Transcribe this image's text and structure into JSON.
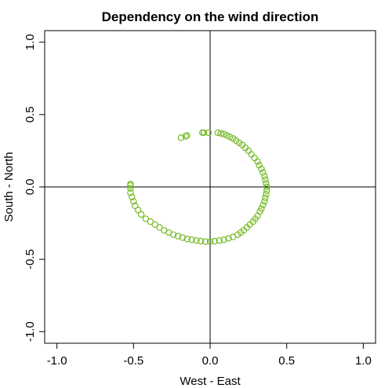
{
  "chart_data": {
    "type": "scatter",
    "title": "Dependency on the wind direction",
    "xlabel": "West - East",
    "ylabel": "South - North",
    "xlim": [
      -1.08,
      1.08
    ],
    "ylim": [
      -1.08,
      1.08
    ],
    "xticks": [
      "-1.0",
      "-0.5",
      "0.0",
      "0.5",
      "1.0"
    ],
    "yticks": [
      "-1.0",
      "-0.5",
      "0.0",
      "0.5",
      "1.0"
    ],
    "xtick_values": [
      -1.0,
      -0.5,
      0.0,
      0.5,
      1.0
    ],
    "ytick_values": [
      -1.0,
      -0.5,
      0.0,
      0.5,
      1.0
    ],
    "reference_lines": {
      "x": 0,
      "y": 0
    },
    "grid": false,
    "point_color": "#77bb2a",
    "marker": "open-circle",
    "series": [
      {
        "points": [
          [
            -0.19,
            0.34
          ],
          [
            -0.16,
            0.35
          ],
          [
            -0.15,
            0.355
          ],
          [
            -0.05,
            0.375
          ],
          [
            -0.04,
            0.375
          ],
          [
            -0.01,
            0.375
          ],
          [
            0.05,
            0.375
          ],
          [
            0.07,
            0.37
          ],
          [
            0.09,
            0.365
          ],
          [
            0.11,
            0.355
          ],
          [
            0.13,
            0.345
          ],
          [
            0.15,
            0.335
          ],
          [
            0.17,
            0.32
          ],
          [
            0.19,
            0.305
          ],
          [
            0.21,
            0.29
          ],
          [
            0.23,
            0.27
          ],
          [
            0.25,
            0.25
          ],
          [
            0.27,
            0.225
          ],
          [
            0.29,
            0.2
          ],
          [
            0.31,
            0.175
          ],
          [
            0.32,
            0.15
          ],
          [
            0.335,
            0.125
          ],
          [
            0.345,
            0.1
          ],
          [
            0.355,
            0.075
          ],
          [
            0.36,
            0.05
          ],
          [
            0.365,
            0.025
          ],
          [
            0.37,
            0.0
          ],
          [
            0.37,
            -0.025
          ],
          [
            0.365,
            -0.05
          ],
          [
            0.36,
            -0.075
          ],
          [
            0.355,
            -0.1
          ],
          [
            0.345,
            -0.125
          ],
          [
            0.335,
            -0.15
          ],
          [
            0.325,
            -0.17
          ],
          [
            0.31,
            -0.2
          ],
          [
            0.295,
            -0.22
          ],
          [
            0.28,
            -0.24
          ],
          [
            0.26,
            -0.26
          ],
          [
            0.24,
            -0.28
          ],
          [
            0.22,
            -0.3
          ],
          [
            0.2,
            -0.315
          ],
          [
            0.18,
            -0.33
          ],
          [
            0.15,
            -0.345
          ],
          [
            0.12,
            -0.355
          ],
          [
            0.09,
            -0.365
          ],
          [
            0.06,
            -0.37
          ],
          [
            0.03,
            -0.375
          ],
          [
            0.0,
            -0.378
          ],
          [
            -0.03,
            -0.378
          ],
          [
            -0.06,
            -0.375
          ],
          [
            -0.09,
            -0.37
          ],
          [
            -0.12,
            -0.365
          ],
          [
            -0.15,
            -0.36
          ],
          [
            -0.18,
            -0.35
          ],
          [
            -0.21,
            -0.34
          ],
          [
            -0.24,
            -0.33
          ],
          [
            -0.27,
            -0.315
          ],
          [
            -0.3,
            -0.3
          ],
          [
            -0.33,
            -0.28
          ],
          [
            -0.36,
            -0.26
          ],
          [
            -0.39,
            -0.24
          ],
          [
            -0.42,
            -0.22
          ],
          [
            -0.45,
            -0.19
          ],
          [
            -0.47,
            -0.16
          ],
          [
            -0.49,
            -0.13
          ],
          [
            -0.5,
            -0.1
          ],
          [
            -0.51,
            -0.07
          ],
          [
            -0.52,
            -0.04
          ],
          [
            -0.52,
            -0.01
          ],
          [
            -0.52,
            0.01
          ],
          [
            -0.52,
            0.02
          ]
        ]
      }
    ]
  }
}
